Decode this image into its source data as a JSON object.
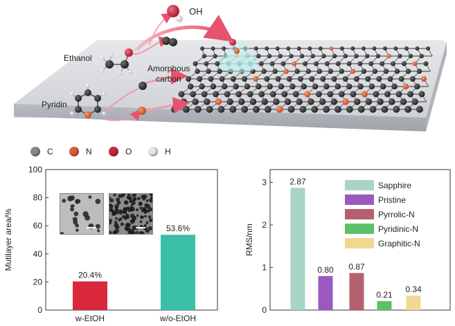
{
  "schematic": {
    "labels": {
      "oh": "OH",
      "ethanol": "Ethanol",
      "amorphous": "Amorphous",
      "carbon": "carbon",
      "pyridin": "Pyridin"
    }
  },
  "atom_legend": [
    {
      "symbol": "C",
      "color": "#8a8a8a"
    },
    {
      "symbol": "N",
      "color": "#d9603a"
    },
    {
      "symbol": "O",
      "color": "#c8283a"
    },
    {
      "symbol": "H",
      "color": "#e8e8e8"
    }
  ],
  "chart_data": [
    {
      "type": "bar",
      "categories": [
        "w-EtOH",
        "w/o-EtOH"
      ],
      "values": [
        20.4,
        53.6
      ],
      "value_labels": [
        "20.4%",
        "53.6%"
      ],
      "colors": [
        "#d9283a",
        "#3cbfa8"
      ],
      "ylabel": "Mutilayer area/%",
      "ylim": [
        0,
        100
      ],
      "yticks": [
        0,
        20,
        40,
        60,
        80,
        100
      ]
    },
    {
      "type": "bar",
      "categories": [
        "Sapphire",
        "Pristine",
        "Pyrrolic-N",
        "Pyridinic-N",
        "Graphitic-N"
      ],
      "values": [
        2.87,
        0.8,
        0.87,
        0.21,
        0.34
      ],
      "value_labels": [
        "2.87",
        "0.80",
        "0.87",
        "0.21",
        "0.34"
      ],
      "colors": [
        "#a8d5c8",
        "#9b59c0",
        "#b5606e",
        "#5cbf6a",
        "#f0d890"
      ],
      "ylabel": "RMS/nm",
      "ylim": [
        0,
        3.3
      ],
      "yticks": [
        0,
        1,
        2,
        3
      ],
      "legend": [
        "Sapphire",
        "Pristine",
        "Pyrrolic-N",
        "Pyridinic-N",
        "Graphitic-N"
      ],
      "legend_position": "top-right"
    }
  ]
}
